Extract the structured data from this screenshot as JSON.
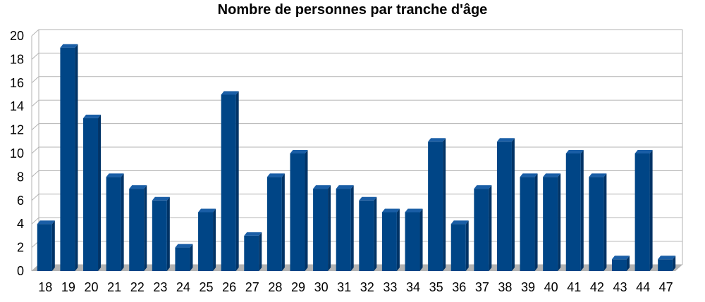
{
  "chart_data": {
    "type": "bar",
    "title": "Nombre de personnes par tranche d'âge",
    "xlabel": "",
    "ylabel": "",
    "categories": [
      "18",
      "19",
      "20",
      "21",
      "22",
      "23",
      "24",
      "25",
      "26",
      "27",
      "28",
      "29",
      "30",
      "31",
      "32",
      "33",
      "34",
      "35",
      "36",
      "37",
      "38",
      "39",
      "40",
      "41",
      "42",
      "43",
      "44",
      "47"
    ],
    "values": [
      4,
      19,
      13,
      8,
      7,
      6,
      2,
      5,
      15,
      3,
      8,
      10,
      7,
      7,
      6,
      5,
      5,
      11,
      4,
      7,
      11,
      8,
      8,
      10,
      8,
      1,
      10,
      1
    ],
    "ylim": [
      0,
      20
    ],
    "yticks": [
      0,
      2,
      4,
      6,
      8,
      10,
      12,
      14,
      16,
      18,
      20
    ],
    "grid": true,
    "legend": "none",
    "style": "3d",
    "colors": {
      "bar_front": "#004586",
      "bar_side": "#003366",
      "bar_top": "#1a5ea6",
      "grid": "#b3b3b3",
      "floor": "#b3b3b3"
    }
  }
}
